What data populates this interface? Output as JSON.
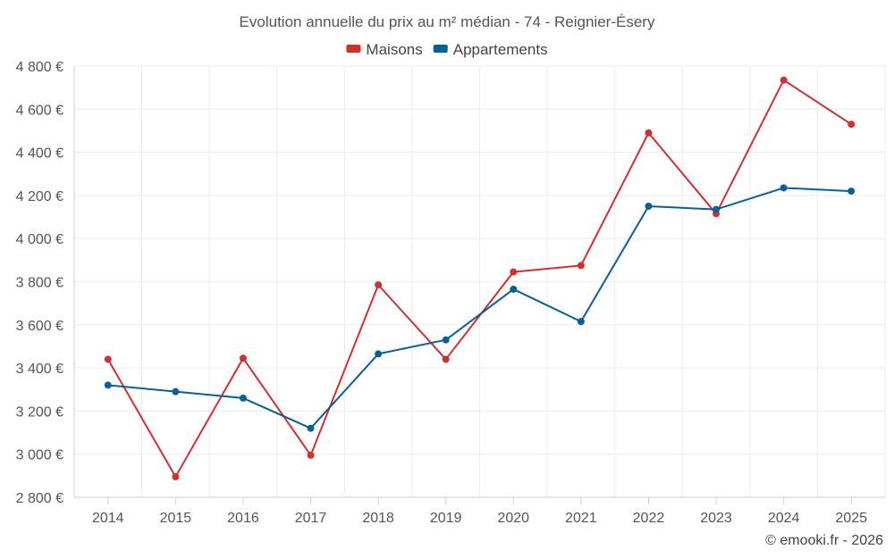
{
  "chart_data": {
    "type": "line",
    "title": "Evolution annuelle du prix au m² médian - 74 - Reignier-Ésery",
    "categories": [
      "2014",
      "2015",
      "2016",
      "2017",
      "2018",
      "2019",
      "2020",
      "2021",
      "2022",
      "2023",
      "2024",
      "2025"
    ],
    "series": [
      {
        "name": "Maisons",
        "color": "#d32f2f",
        "values": [
          3440,
          2895,
          3445,
          2995,
          3785,
          3440,
          3845,
          3875,
          4490,
          4115,
          4735,
          4530
        ]
      },
      {
        "name": "Appartements",
        "color": "#0a5f96",
        "values": [
          3320,
          3290,
          3260,
          3120,
          3465,
          3530,
          3765,
          3615,
          4150,
          4135,
          4235,
          4220
        ]
      }
    ],
    "ylim": [
      2800,
      4800
    ],
    "yticks": [
      2800,
      3000,
      3200,
      3400,
      3600,
      3800,
      4000,
      4200,
      4400,
      4600,
      4800
    ],
    "ytick_labels": [
      "2 800 €",
      "3 000 €",
      "3 200 €",
      "3 400 €",
      "3 600 €",
      "3 800 €",
      "4 000 €",
      "4 200 €",
      "4 400 €",
      "4 600 €",
      "4 800 €"
    ],
    "legend_position": "top-center",
    "grid": true
  },
  "credit": "© emooki.fr - 2026"
}
